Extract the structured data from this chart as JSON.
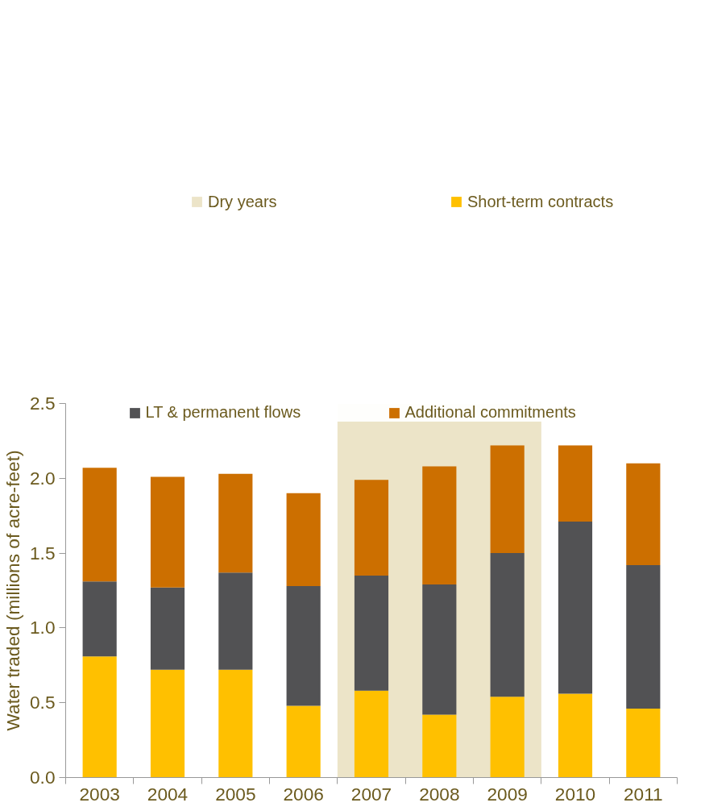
{
  "chart_data": {
    "type": "bar",
    "stacked": true,
    "ylabel": "Water traded (millions of acre-feet)",
    "categories": [
      "2003",
      "2004",
      "2005",
      "2006",
      "2007",
      "2008",
      "2009",
      "2010",
      "2011"
    ],
    "series": [
      {
        "name": "Short-term contracts",
        "color": "#ffc000",
        "values": [
          0.81,
          0.72,
          0.72,
          0.48,
          0.58,
          0.42,
          0.54,
          0.56,
          0.46
        ]
      },
      {
        "name": "LT & permanent flows",
        "color": "#525254",
        "values": [
          0.5,
          0.55,
          0.65,
          0.8,
          0.77,
          0.87,
          0.96,
          1.15,
          0.96
        ]
      },
      {
        "name": "Additional commitments",
        "color": "#cc6f00",
        "values": [
          0.76,
          0.74,
          0.66,
          0.62,
          0.64,
          0.79,
          0.72,
          0.51,
          0.68
        ]
      }
    ],
    "bands": [
      {
        "axis": "x",
        "from": "2007",
        "to": "2009",
        "label": "Dry years",
        "color": "#ece4c8"
      }
    ],
    "ylim": [
      0,
      2.5
    ],
    "yticks": [
      {
        "value": 0,
        "label": "0.0"
      },
      {
        "value": 0.5,
        "label": "0.5"
      },
      {
        "value": 1,
        "label": "1.0"
      },
      {
        "value": 1.5,
        "label": "1.5"
      },
      {
        "value": 2,
        "label": "2.0"
      },
      {
        "value": 2.5,
        "label": "2.5"
      }
    ],
    "grid": false,
    "legend": "top"
  }
}
